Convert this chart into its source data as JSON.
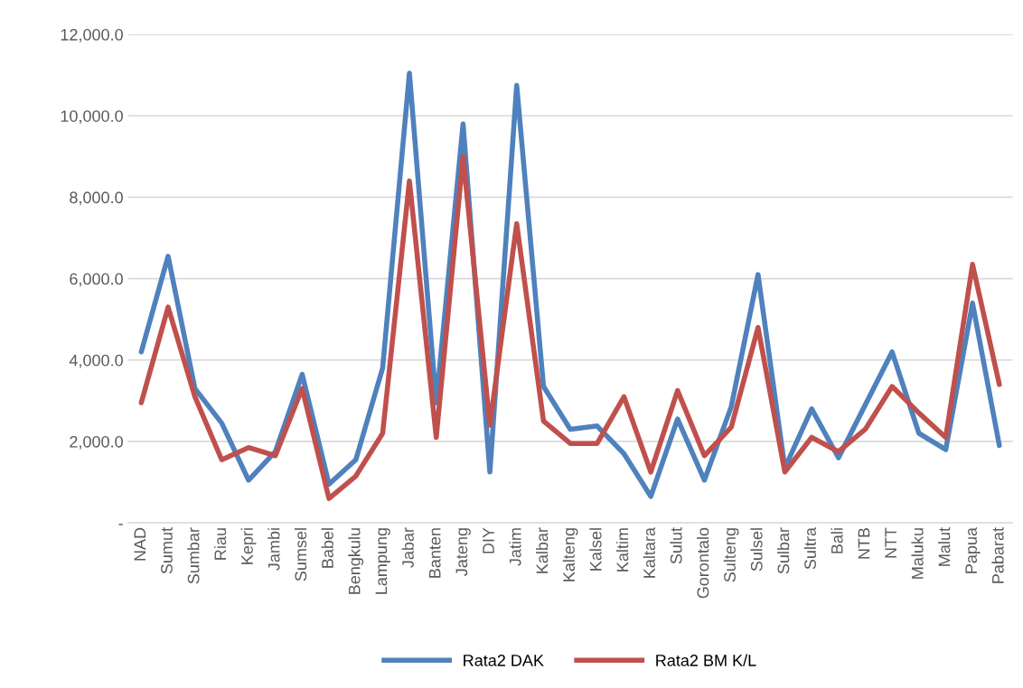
{
  "chart_data": {
    "type": "line",
    "categories": [
      "NAD",
      "Sumut",
      "Sumbar",
      "Riau",
      "Kepri",
      "Jambi",
      "Sumsel",
      "Babel",
      "Bengkulu",
      "Lampung",
      "Jabar",
      "Banten",
      "Jateng",
      "DIY",
      "Jatim",
      "Kalbar",
      "Kalteng",
      "Kalsel",
      "Kaltim",
      "Kaltara",
      "Sulut",
      "Gorontalo",
      "Sulteng",
      "Sulsel",
      "Sulbar",
      "Sultra",
      "Bali",
      "NTB",
      "NTT",
      "Maluku",
      "Malut",
      "Papua",
      "Pabarat"
    ],
    "series": [
      {
        "name": "Rata2 DAK",
        "color": "#4f81bd",
        "values": [
          4200,
          6550,
          3300,
          2450,
          1050,
          1750,
          3650,
          950,
          1550,
          3800,
          11050,
          2950,
          9800,
          1250,
          10750,
          3350,
          2300,
          2380,
          1700,
          650,
          2550,
          1050,
          2850,
          6100,
          1350,
          2800,
          1600,
          2900,
          4200,
          2200,
          1800,
          5400,
          1900
        ]
      },
      {
        "name": "Rata2 BM K/L",
        "color": "#c0504d",
        "values": [
          2950,
          5300,
          3100,
          1550,
          1850,
          1650,
          3300,
          600,
          1150,
          2200,
          8400,
          2100,
          9000,
          2400,
          7350,
          2500,
          1950,
          1950,
          3100,
          1250,
          3250,
          1650,
          2350,
          4800,
          1250,
          2100,
          1750,
          2300,
          3350,
          2700,
          2100,
          6350,
          3400
        ]
      }
    ],
    "ylim": [
      0,
      12000
    ],
    "yticks": [
      {
        "value": 0,
        "label": "-"
      },
      {
        "value": 2000,
        "label": "2,000.0"
      },
      {
        "value": 4000,
        "label": "4,000.0"
      },
      {
        "value": 6000,
        "label": "6,000.0"
      },
      {
        "value": 8000,
        "label": "8,000.0"
      },
      {
        "value": 10000,
        "label": "10,000.0"
      },
      {
        "value": 12000,
        "label": "12,000.0"
      }
    ],
    "grid": "y",
    "legend": "bottom",
    "marker": "none",
    "line_style": "solid"
  }
}
